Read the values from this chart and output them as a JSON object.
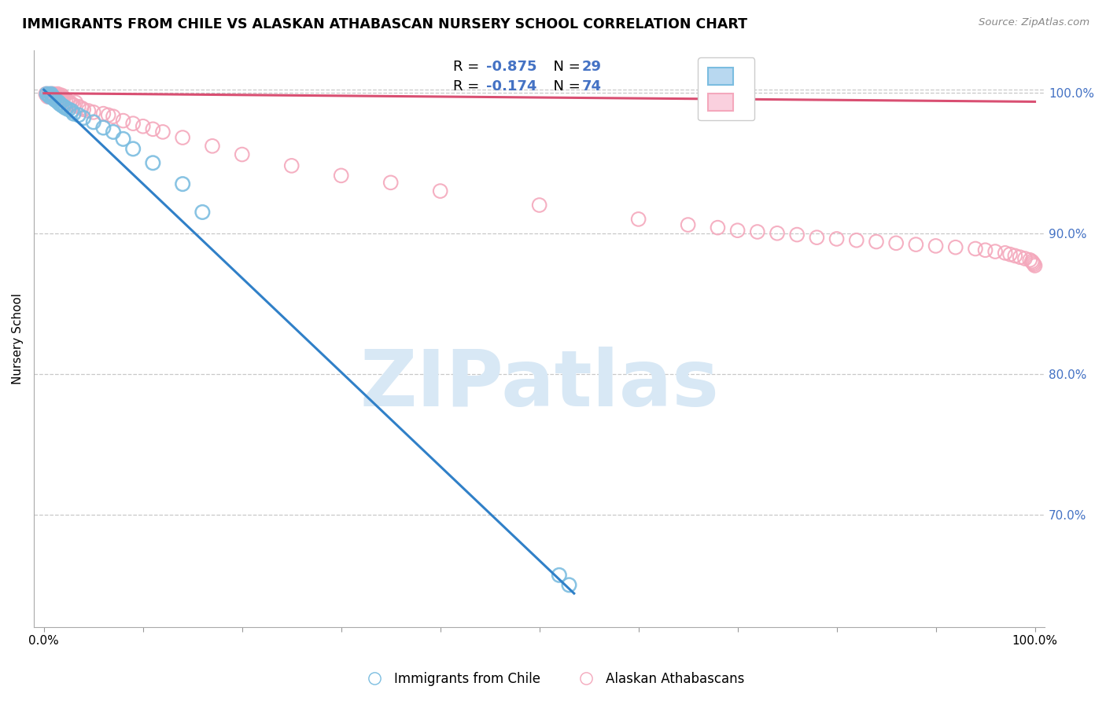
{
  "title": "IMMIGRANTS FROM CHILE VS ALASKAN ATHABASCAN NURSERY SCHOOL CORRELATION CHART",
  "source": "Source: ZipAtlas.com",
  "ylabel": "Nursery School",
  "ylim": [
    0.62,
    1.03
  ],
  "xlim": [
    -0.01,
    1.01
  ],
  "ytick_positions": [
    0.7,
    0.8,
    0.9,
    1.0
  ],
  "ytick_labels": [
    "70.0%",
    "80.0%",
    "90.0%",
    "100.0%"
  ],
  "blue_R": -0.875,
  "blue_N": 29,
  "pink_R": -0.174,
  "pink_N": 74,
  "blue_label": "Immigrants from Chile",
  "pink_label": "Alaskan Athabascans",
  "blue_color": "#7bbde0",
  "pink_color": "#f4a8bc",
  "blue_trend_color": "#3080c8",
  "pink_trend_color": "#d94f72",
  "watermark_text": "ZIPatlas",
  "watermark_color": "#d8e8f5",
  "blue_scatter_x": [
    0.003,
    0.005,
    0.006,
    0.007,
    0.008,
    0.009,
    0.01,
    0.011,
    0.013,
    0.015,
    0.016,
    0.018,
    0.02,
    0.022,
    0.025,
    0.028,
    0.03,
    0.035,
    0.04,
    0.05,
    0.06,
    0.07,
    0.08,
    0.09,
    0.11,
    0.14,
    0.16,
    0.52,
    0.53
  ],
  "blue_scatter_y": [
    0.999,
    0.998,
    0.997,
    0.999,
    0.998,
    0.997,
    0.996,
    0.995,
    0.994,
    0.993,
    0.992,
    0.991,
    0.99,
    0.989,
    0.988,
    0.987,
    0.985,
    0.984,
    0.982,
    0.979,
    0.975,
    0.972,
    0.967,
    0.96,
    0.95,
    0.935,
    0.915,
    0.657,
    0.65
  ],
  "pink_scatter_x": [
    0.002,
    0.003,
    0.004,
    0.005,
    0.006,
    0.007,
    0.008,
    0.009,
    0.01,
    0.011,
    0.012,
    0.013,
    0.014,
    0.015,
    0.016,
    0.017,
    0.018,
    0.019,
    0.02,
    0.022,
    0.024,
    0.026,
    0.028,
    0.03,
    0.032,
    0.035,
    0.038,
    0.04,
    0.045,
    0.05,
    0.06,
    0.065,
    0.07,
    0.08,
    0.09,
    0.1,
    0.11,
    0.12,
    0.14,
    0.17,
    0.2,
    0.25,
    0.3,
    0.35,
    0.4,
    0.5,
    0.6,
    0.65,
    0.68,
    0.7,
    0.72,
    0.74,
    0.76,
    0.78,
    0.8,
    0.82,
    0.84,
    0.86,
    0.88,
    0.9,
    0.92,
    0.94,
    0.95,
    0.96,
    0.97,
    0.975,
    0.98,
    0.985,
    0.99,
    0.995,
    0.997,
    0.998,
    0.999,
    1.0
  ],
  "pink_scatter_y": [
    0.999,
    0.998,
    0.997,
    0.999,
    0.998,
    0.997,
    0.999,
    0.998,
    0.999,
    0.998,
    0.997,
    0.996,
    0.999,
    0.998,
    0.997,
    0.996,
    0.998,
    0.997,
    0.996,
    0.995,
    0.994,
    0.993,
    0.992,
    0.991,
    0.993,
    0.99,
    0.989,
    0.988,
    0.987,
    0.986,
    0.985,
    0.984,
    0.983,
    0.98,
    0.978,
    0.976,
    0.974,
    0.972,
    0.968,
    0.962,
    0.956,
    0.948,
    0.941,
    0.936,
    0.93,
    0.92,
    0.91,
    0.906,
    0.904,
    0.902,
    0.901,
    0.9,
    0.899,
    0.897,
    0.896,
    0.895,
    0.894,
    0.893,
    0.892,
    0.891,
    0.89,
    0.889,
    0.888,
    0.887,
    0.886,
    0.885,
    0.884,
    0.883,
    0.882,
    0.881,
    0.88,
    0.879,
    0.878,
    0.877
  ],
  "blue_trend_x0": 0.0,
  "blue_trend_y0": 1.002,
  "blue_trend_x1": 0.535,
  "blue_trend_y1": 0.644,
  "pink_trend_x0": 0.0,
  "pink_trend_y0": 0.9995,
  "pink_trend_x1": 1.0,
  "pink_trend_y1": 0.9935
}
